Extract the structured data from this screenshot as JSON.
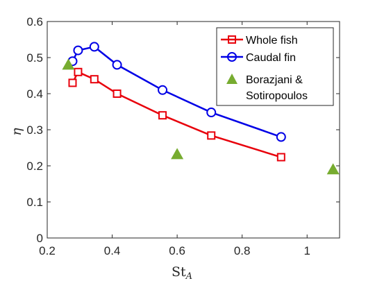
{
  "chart_data": {
    "type": "line",
    "xlabel_main": "St",
    "xlabel_sub": "A",
    "ylabel": "η",
    "xlim": [
      0.2,
      1.1
    ],
    "ylim": [
      0,
      0.6
    ],
    "xticks": [
      "0.2",
      "0.4",
      "0.6",
      "0.8",
      "1"
    ],
    "xtick_values": [
      0.2,
      0.4,
      0.6,
      0.8,
      1.0
    ],
    "yticks": [
      "0",
      "0.1",
      "0.2",
      "0.3",
      "0.4",
      "0.5",
      "0.6"
    ],
    "ytick_values": [
      0,
      0.1,
      0.2,
      0.3,
      0.4,
      0.5,
      0.6
    ],
    "grid": false,
    "legend_position": "top-right",
    "series": [
      {
        "name": "Whole fish",
        "color": "#e8000b",
        "marker": "square",
        "line": true,
        "x": [
          0.278,
          0.295,
          0.345,
          0.415,
          0.555,
          0.705,
          0.92
        ],
        "y": [
          0.43,
          0.46,
          0.44,
          0.4,
          0.34,
          0.284,
          0.224
        ]
      },
      {
        "name": "Caudal fin",
        "color": "#0000e6",
        "marker": "circle",
        "line": true,
        "x": [
          0.278,
          0.295,
          0.345,
          0.415,
          0.555,
          0.705,
          0.92
        ],
        "y": [
          0.49,
          0.52,
          0.53,
          0.48,
          0.41,
          0.348,
          0.28
        ]
      },
      {
        "name_line1": "Borazjani &",
        "name_line2": "Sotiropoulos",
        "color": "#77ac30",
        "marker": "triangle",
        "line": false,
        "x": [
          0.265,
          0.6,
          1.08
        ],
        "y": [
          0.48,
          0.232,
          0.19
        ]
      }
    ]
  }
}
